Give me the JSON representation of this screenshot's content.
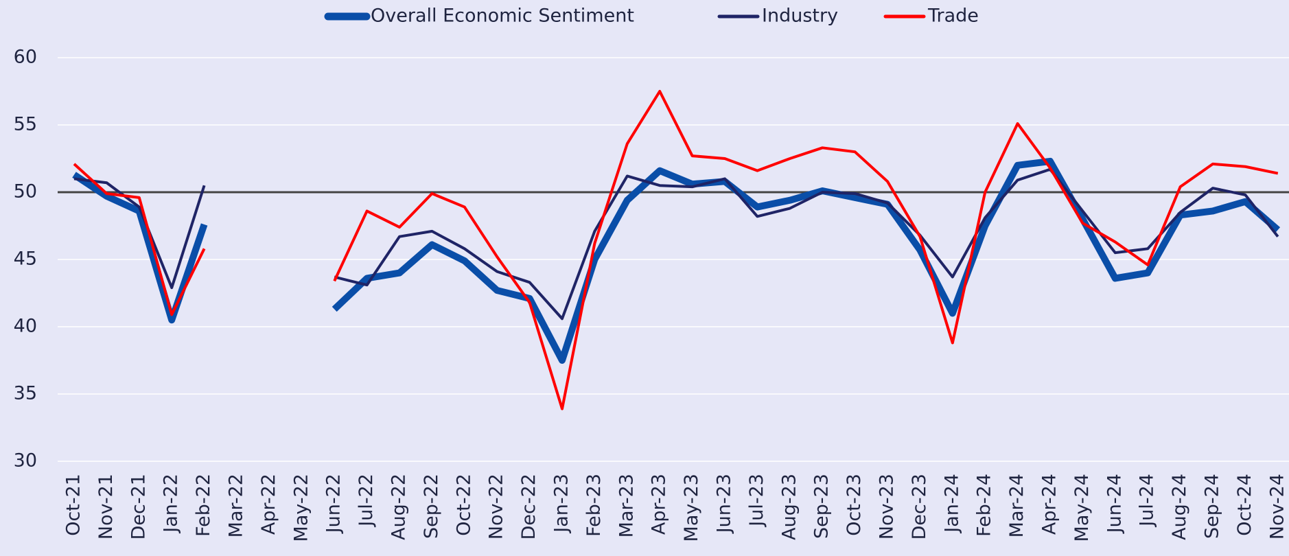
{
  "chart_data": {
    "type": "line",
    "categories": [
      "Oct-21",
      "Nov-21",
      "Dec-21",
      "Jan-22",
      "Feb-22",
      "Mar-22",
      "Apr-22",
      "May-22",
      "Jun-22",
      "Jul-22",
      "Aug-22",
      "Sep-22",
      "Oct-22",
      "Nov-22",
      "Dec-22",
      "Jan-23",
      "Feb-23",
      "Mar-23",
      "Apr-23",
      "May-23",
      "Jun-23",
      "Jul-23",
      "Aug-23",
      "Sep-23",
      "Oct-23",
      "Nov-23",
      "Dec-23",
      "Jan-24",
      "Feb-24",
      "Mar-24",
      "Apr-24",
      "May-24",
      "Jun-24",
      "Jul-24",
      "Aug-24",
      "Sep-24",
      "Oct-24",
      "Nov-24"
    ],
    "series": [
      {
        "name": "Overall Economic Sentiment",
        "color": "#0a4ea8",
        "values": [
          51.3,
          49.7,
          48.6,
          40.5,
          47.6,
          null,
          null,
          null,
          41.3,
          43.6,
          44.0,
          46.1,
          44.9,
          42.7,
          42.1,
          37.5,
          45.0,
          49.4,
          51.6,
          50.6,
          50.8,
          48.9,
          49.4,
          50.1,
          49.6,
          49.1,
          45.7,
          41.0,
          47.5,
          52.0,
          52.3,
          48.0,
          43.6,
          44.0,
          48.3,
          48.6,
          49.3,
          47.2
        ]
      },
      {
        "name": "Industry",
        "color": "#1f2466",
        "values": [
          51.0,
          50.7,
          48.9,
          42.9,
          50.5,
          null,
          null,
          null,
          43.7,
          43.1,
          46.7,
          47.1,
          45.8,
          44.1,
          43.3,
          40.6,
          47.1,
          51.2,
          50.5,
          50.4,
          51.0,
          48.2,
          48.8,
          50.0,
          49.9,
          49.2,
          46.8,
          43.7,
          48.1,
          50.9,
          51.7,
          48.6,
          45.5,
          45.8,
          48.5,
          50.3,
          49.8,
          46.7
        ]
      },
      {
        "name": "Trade",
        "color": "#ff0000",
        "values": [
          52.1,
          49.9,
          49.6,
          40.9,
          45.8,
          null,
          null,
          null,
          43.4,
          48.6,
          47.4,
          49.9,
          48.9,
          45.2,
          41.8,
          33.9,
          46.2,
          53.6,
          57.5,
          52.7,
          52.5,
          51.6,
          52.5,
          53.3,
          53.0,
          50.8,
          46.7,
          38.8,
          50.0,
          55.1,
          51.8,
          47.7,
          46.3,
          44.6,
          50.4,
          52.1,
          51.9,
          51.4
        ]
      }
    ],
    "ylim": [
      30,
      62
    ],
    "yticks": [
      30,
      35,
      40,
      45,
      50,
      55,
      60
    ],
    "grid": true,
    "reference_line": 50,
    "legend": "top"
  }
}
